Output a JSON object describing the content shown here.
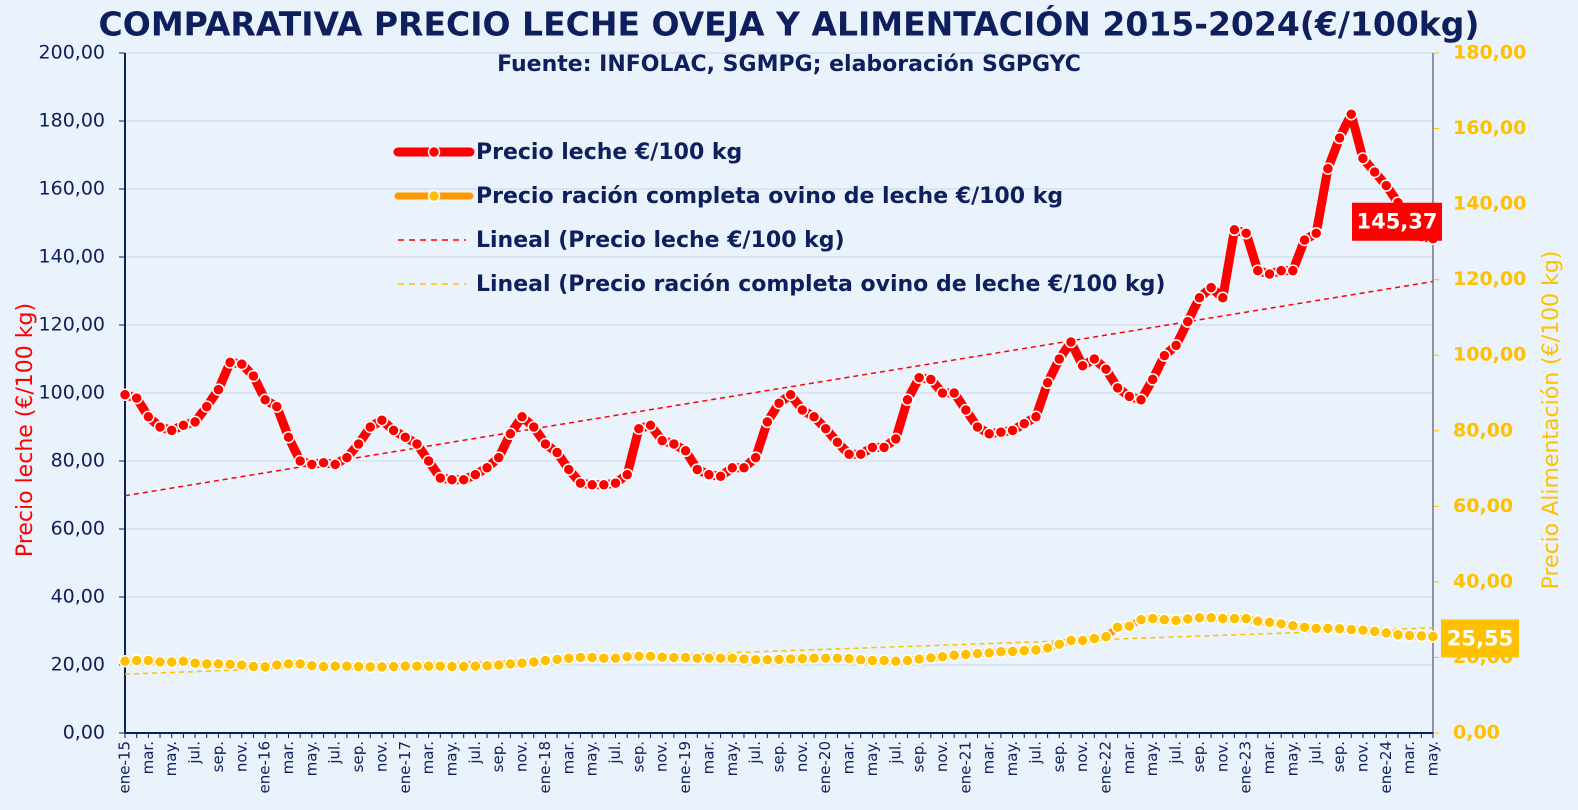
{
  "chart_data": {
    "type": "line",
    "title": "COMPARATIVA PRECIO LECHE OVEJA Y ALIMENTACIÓN 2015-2024(€/100kg)",
    "subtitle": "Fuente: INFOLAC, SGMPG; elaboración SGPGYC",
    "y_label": "Precio leche (€/100 kg)",
    "y2_label": "Precio Alimentación (€/100 kg)",
    "categories": [
      "ene-15",
      null,
      "mar.",
      null,
      "may.",
      null,
      "jul.",
      null,
      "sep.",
      null,
      "nov.",
      null,
      "ene-16",
      null,
      "mar.",
      null,
      "may.",
      null,
      "jul.",
      null,
      "sep.",
      null,
      "nov.",
      null,
      "ene-17",
      null,
      "mar.",
      null,
      "may.",
      null,
      "jul.",
      null,
      "sep.",
      null,
      "nov.",
      null,
      "ene-18",
      null,
      "mar.",
      null,
      "may.",
      null,
      "jul.",
      null,
      "sep.",
      null,
      "nov.",
      null,
      "ene-19",
      null,
      "mar.",
      null,
      "may.",
      null,
      "jul.",
      null,
      "sep.",
      null,
      "nov.",
      null,
      "ene-20",
      null,
      "mar.",
      null,
      "may.",
      null,
      "jul.",
      null,
      "sep.",
      null,
      "nov.",
      null,
      "ene-21",
      null,
      "mar.",
      null,
      "may.",
      null,
      "jul.",
      null,
      "sep.",
      null,
      "nov.",
      null,
      "ene-22",
      null,
      "mar.",
      null,
      "may.",
      null,
      "jul.",
      null,
      "sep.",
      null,
      "nov.",
      null,
      "ene-23",
      null,
      "mar.",
      null,
      "may.",
      null,
      "jul.",
      null,
      "sep.",
      null,
      "nov.",
      null,
      "ene-24",
      null,
      "mar.",
      null,
      "may."
    ],
    "series": [
      {
        "name": "Precio leche €/100 kg",
        "color": "#ff0000",
        "axis": "y",
        "last_label": "145,37",
        "trend": {
          "name": "Lineal (Precio leche €/100 kg)",
          "color": "#ff0000"
        },
        "values": [
          99.5,
          98.5,
          93,
          90,
          89,
          90.5,
          91.5,
          96,
          101,
          109,
          108.5,
          105,
          98,
          96,
          87,
          80,
          79,
          79.5,
          79,
          81,
          85,
          90,
          92,
          89,
          87,
          85,
          80,
          75,
          74.5,
          74.5,
          76,
          78,
          81,
          88,
          93,
          90,
          85,
          82.5,
          77.5,
          73.5,
          73,
          73,
          73.5,
          76,
          89.5,
          90.5,
          86,
          85,
          83,
          77.5,
          76,
          75.5,
          78,
          78,
          81,
          91.5,
          97,
          99.5,
          95,
          93,
          89.5,
          85.5,
          82,
          82,
          84,
          84,
          86.5,
          98,
          104.5,
          104,
          100,
          100,
          95,
          90,
          88,
          88.5,
          89,
          91,
          93,
          103,
          110,
          115,
          108,
          110,
          107,
          101.5,
          99,
          98,
          104,
          111,
          114,
          121,
          128,
          131,
          128,
          148,
          147,
          136,
          135,
          136,
          136,
          145,
          147,
          166,
          175,
          182,
          169,
          165,
          161,
          156,
          148,
          146,
          145.37
        ]
      },
      {
        "name": "Precio ración completa ovino de leche €/100 kg",
        "color": "#ff9900",
        "marker_color": "#ffc000",
        "axis": "y2",
        "last_label": "25,55",
        "trend": {
          "name": "Lineal (Precio ración completa ovino de leche €/100 kg)",
          "color": "#ffc000"
        },
        "values": [
          19,
          19.2,
          19.2,
          18.8,
          18.8,
          19,
          18.5,
          18.3,
          18.3,
          18.2,
          18,
          17.6,
          17.5,
          18,
          18.3,
          18.3,
          17.8,
          17.6,
          17.7,
          17.7,
          17.6,
          17.5,
          17.5,
          17.6,
          17.7,
          17.7,
          17.7,
          17.7,
          17.6,
          17.6,
          17.7,
          17.8,
          18,
          18.3,
          18.5,
          18.8,
          19.2,
          19.5,
          19.8,
          20,
          20,
          19.8,
          19.8,
          20.2,
          20.3,
          20.3,
          20.1,
          20,
          20,
          19.8,
          19.8,
          19.8,
          19.8,
          19.6,
          19.4,
          19.4,
          19.5,
          19.6,
          19.7,
          19.8,
          19.8,
          19.8,
          19.7,
          19.4,
          19.2,
          19.2,
          19,
          19.2,
          19.6,
          19.9,
          20.2,
          20.6,
          20.8,
          21,
          21.2,
          21.5,
          21.6,
          21.8,
          22,
          22.5,
          23.5,
          24.5,
          24.5,
          25,
          25.5,
          28,
          28.3,
          30,
          30.3,
          30,
          29.8,
          30.2,
          30.5,
          30.5,
          30.3,
          30.3,
          30.3,
          29.6,
          29.3,
          28.9,
          28.4,
          28,
          27.7,
          27.7,
          27.6,
          27.4,
          27.2,
          26.9,
          26.5,
          26,
          25.8,
          25.7,
          25.55
        ]
      }
    ],
    "ylim": [
      0,
      200
    ],
    "yticks": [
      {
        "value": 0,
        "label": "0,00"
      },
      {
        "value": 20,
        "label": "20,00"
      },
      {
        "value": 40,
        "label": "40,00"
      },
      {
        "value": 60,
        "label": "60,00"
      },
      {
        "value": 80,
        "label": "80,00"
      },
      {
        "value": 100,
        "label": "100,00"
      },
      {
        "value": 120,
        "label": "120,00"
      },
      {
        "value": 140,
        "label": "140,00"
      },
      {
        "value": 160,
        "label": "160,00"
      },
      {
        "value": 180,
        "label": "180,00"
      },
      {
        "value": 200,
        "label": "200,00"
      }
    ],
    "y2lim": [
      0,
      180
    ],
    "y2ticks": [
      {
        "value": 0,
        "label": "0,00"
      },
      {
        "value": 20,
        "label": "20,00"
      },
      {
        "value": 40,
        "label": "40,00"
      },
      {
        "value": 60,
        "label": "60,00"
      },
      {
        "value": 80,
        "label": "80,00"
      },
      {
        "value": 100,
        "label": "100,00"
      },
      {
        "value": 120,
        "label": "120,00"
      },
      {
        "value": 140,
        "label": "140,00"
      },
      {
        "value": 160,
        "label": "160,00"
      },
      {
        "value": 180,
        "label": "180,00"
      }
    ],
    "grid": true
  }
}
